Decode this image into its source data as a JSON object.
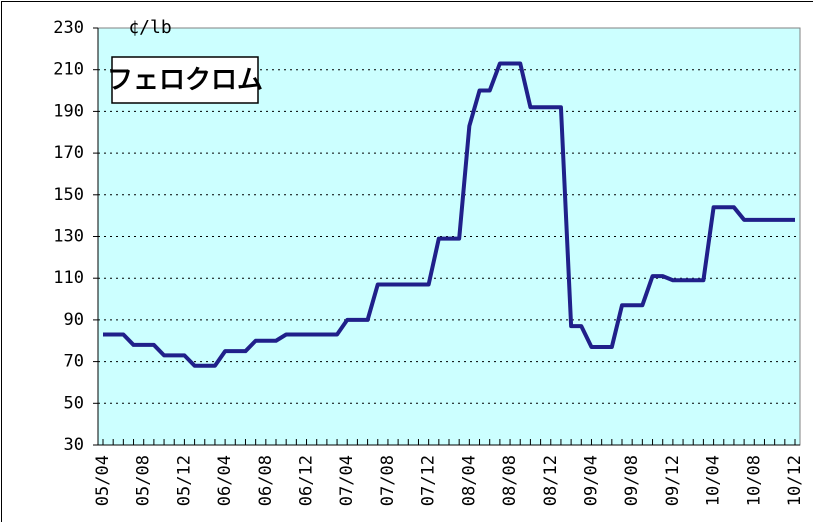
{
  "chart_data": {
    "type": "line",
    "title": "フェロクロム",
    "y_unit": "¢/lb",
    "categories": [
      "05/04",
      null,
      null,
      null,
      "05/08",
      null,
      null,
      null,
      "05/12",
      null,
      null,
      null,
      "06/04",
      null,
      null,
      null,
      "06/08",
      null,
      null,
      null,
      "06/12",
      null,
      null,
      null,
      "07/04",
      null,
      null,
      null,
      "07/08",
      null,
      null,
      null,
      "07/12",
      null,
      null,
      null,
      "08/04",
      null,
      null,
      null,
      "08/08",
      null,
      null,
      null,
      "08/12",
      null,
      null,
      null,
      "09/04",
      null,
      null,
      null,
      "09/08",
      null,
      null,
      null,
      "09/12",
      null,
      null,
      null,
      "10/04",
      null,
      null,
      null,
      "10/08",
      null,
      null,
      null,
      "10/12"
    ],
    "values": [
      83,
      83,
      83,
      78,
      78,
      78,
      73,
      73,
      73,
      68,
      68,
      68,
      75,
      75,
      75,
      80,
      80,
      80,
      83,
      83,
      83,
      83,
      83,
      83,
      90,
      90,
      90,
      107,
      107,
      107,
      107,
      107,
      107,
      129,
      129,
      129,
      183,
      200,
      200,
      213,
      213,
      213,
      192,
      192,
      192,
      192,
      87,
      87,
      77,
      77,
      77,
      97,
      97,
      97,
      111,
      111,
      109,
      109,
      109,
      109,
      144,
      144,
      144,
      138,
      138,
      138,
      138,
      138,
      138
    ],
    "color": "#20208a",
    "ylim": [
      30,
      230
    ],
    "yticks": [
      30,
      50,
      70,
      90,
      110,
      130,
      150,
      170,
      190,
      210,
      230
    ],
    "grid": true
  }
}
